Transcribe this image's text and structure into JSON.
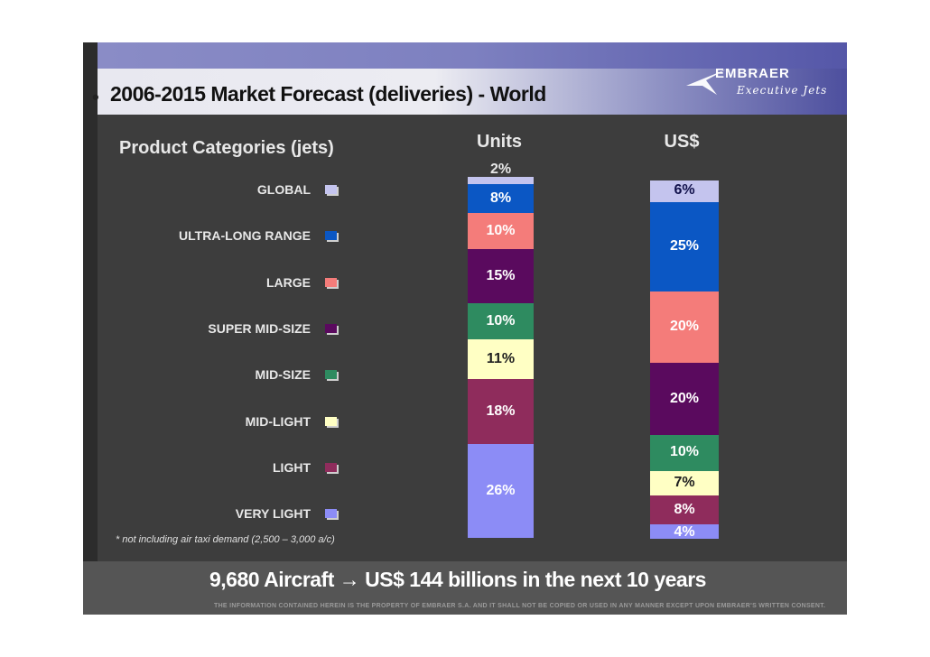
{
  "slide": {
    "bullet": "•",
    "title": "2006-2015 Market Forecast (deliveries) - World",
    "logo": {
      "word": "EMBRAER",
      "sub": "Executive Jets"
    },
    "footnote": "* not including air taxi demand (2,500 – 3,000 a/c)",
    "summary": "9,680 Aircraft → US$ 144 billions in the next 10 years",
    "disclaimer": "THE INFORMATION CONTAINED HEREIN IS THE PROPERTY OF EMBRAER S.A. AND IT SHALL NOT BE COPIED OR USED IN ANY MANNER EXCEPT UPON EMBRAER'S WRITTEN CONSENT."
  },
  "chart_data": {
    "type": "bar",
    "stacked": true,
    "title": "2006-2015 Market Forecast (deliveries) - World",
    "legend_title": "Product Categories (jets)",
    "legend_position": "left",
    "categories": [
      "Units",
      "US$"
    ],
    "segments_order": "top-to-bottom",
    "series": [
      {
        "name": "GLOBAL",
        "color": "#c4c4ee",
        "values": [
          2,
          6
        ]
      },
      {
        "name": "ULTRA-LONG RANGE",
        "color": "#0b57c4",
        "values": [
          8,
          25
        ]
      },
      {
        "name": "LARGE",
        "color": "#f47c7a",
        "values": [
          10,
          20
        ]
      },
      {
        "name": "SUPER MID-SIZE",
        "color": "#5a0a5e",
        "values": [
          15,
          20
        ]
      },
      {
        "name": "MID-SIZE",
        "color": "#2e8b60",
        "values": [
          10,
          10
        ]
      },
      {
        "name": "MID-LIGHT",
        "color": "#ffffc4",
        "values": [
          11,
          7
        ]
      },
      {
        "name": "LIGHT",
        "color": "#8f2c5c",
        "values": [
          18,
          8
        ]
      },
      {
        "name": "VERY LIGHT",
        "color": "#8c8cf6",
        "values": [
          26,
          4
        ]
      }
    ],
    "labels": [
      [
        "2%",
        "8%",
        "10%",
        "15%",
        "10%",
        "11%",
        "18%",
        "26%"
      ],
      [
        "6%",
        "25%",
        "20%",
        "20%",
        "10%",
        "7%",
        "8%",
        "4%"
      ]
    ],
    "label_colors": {
      "#c4c4ee": "#10104a",
      "#0b57c4": "#ffffff",
      "#f47c7a": "#ffffff",
      "#5a0a5e": "#ffffff",
      "#2e8b60": "#ffffff",
      "#ffffc4": "#202020",
      "#8f2c5c": "#ffffff",
      "#8c8cf6": "#ffffff"
    },
    "ylim": [
      0,
      100
    ],
    "ylabel": "",
    "xlabel": ""
  }
}
